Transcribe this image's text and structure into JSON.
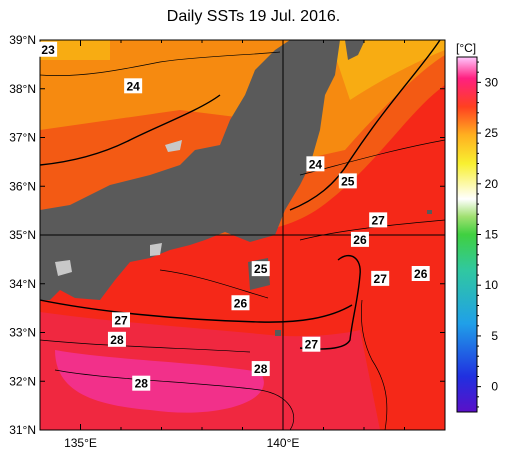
{
  "title": "Daily SSTs 19 Jul. 2016.",
  "map": {
    "lon_range": [
      134,
      144
    ],
    "lat_range": [
      31,
      39
    ],
    "lat_ticks": [
      "39°N",
      "38°N",
      "37°N",
      "36°N",
      "35°N",
      "34°N",
      "33°N",
      "32°N",
      "31°N"
    ],
    "lon_ticks": [
      "135°E",
      "140°E"
    ],
    "reference_lines": {
      "lat": 35,
      "lon": 140
    },
    "land_color": "#5a5a5a",
    "lake_color": "#cccccc"
  },
  "colorbar": {
    "unit_label": "[°C]",
    "ticks": [
      "30",
      "25",
      "20",
      "15",
      "10",
      "5",
      "0"
    ],
    "tick_values": [
      30,
      25,
      20,
      15,
      10,
      5,
      0
    ],
    "range": [
      -2.5,
      32.5
    ]
  },
  "contour_labels": [
    {
      "text": "23",
      "lon": 134.2,
      "lat": 38.8
    },
    {
      "text": "24",
      "lon": 136.3,
      "lat": 38.05
    },
    {
      "text": "24",
      "lon": 140.8,
      "lat": 36.45
    },
    {
      "text": "25",
      "lon": 141.6,
      "lat": 36.1
    },
    {
      "text": "27",
      "lon": 142.35,
      "lat": 35.3
    },
    {
      "text": "26",
      "lon": 141.9,
      "lat": 34.9
    },
    {
      "text": "25",
      "lon": 139.45,
      "lat": 34.3
    },
    {
      "text": "27",
      "lon": 142.4,
      "lat": 34.1
    },
    {
      "text": "26",
      "lon": 143.4,
      "lat": 34.2
    },
    {
      "text": "26",
      "lon": 138.95,
      "lat": 33.6
    },
    {
      "text": "27",
      "lon": 136.0,
      "lat": 33.25
    },
    {
      "text": "28",
      "lon": 135.9,
      "lat": 32.85
    },
    {
      "text": "27",
      "lon": 140.7,
      "lat": 32.75
    },
    {
      "text": "28",
      "lon": 139.45,
      "lat": 32.25
    },
    {
      "text": "28",
      "lon": 136.5,
      "lat": 31.95
    }
  ]
}
